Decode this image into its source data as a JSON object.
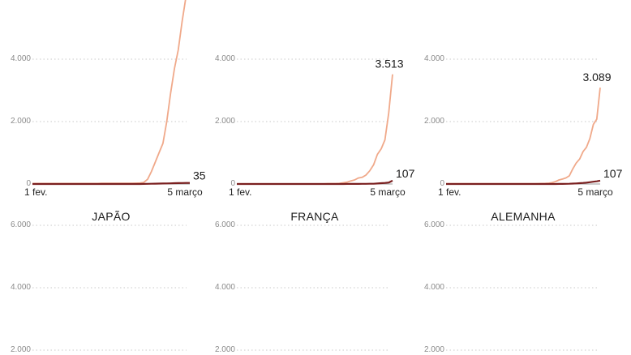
{
  "colors": {
    "cases": "#f0a98a",
    "deaths": "#7a1f1f",
    "grid": "#c8c8c8",
    "tick": "#8a8a8a"
  },
  "chart_data": [
    {
      "type": "line",
      "title": "",
      "y_ticks": [
        {
          "value": 4000,
          "label": "4.000"
        },
        {
          "value": 2000,
          "label": "2.000"
        },
        {
          "value": 0,
          "label": "0"
        }
      ],
      "grid_values": [
        6000,
        4000,
        2000
      ],
      "ylim": [
        0,
        6500
      ],
      "x_labels": {
        "start": "1 fev.",
        "end": "5 março"
      },
      "series": [
        {
          "key": "cases",
          "values": [
            15,
            15,
            15,
            15,
            15,
            15,
            15,
            15,
            15,
            15,
            15,
            15,
            15,
            15,
            15,
            15,
            15,
            15,
            20,
            20,
            20,
            20,
            20,
            20,
            21,
            22,
            24,
            26,
            31,
            50,
            150,
            400,
            700,
            1000,
            1300,
            2000,
            2900,
            3700,
            4300,
            5200,
            6000,
            6600
          ]
        },
        {
          "key": "deaths",
          "values": [
            0,
            0,
            0,
            0,
            0,
            0,
            0,
            0,
            0,
            0,
            0,
            0,
            0,
            0,
            0,
            0,
            0,
            0,
            0,
            0,
            0,
            0,
            0,
            0,
            0,
            0,
            0,
            0,
            0,
            2,
            5,
            8,
            10,
            12,
            15,
            18,
            22,
            25,
            28,
            30,
            33,
            35
          ]
        }
      ],
      "end_labels": [
        {
          "series": "deaths",
          "label": "35"
        }
      ]
    },
    {
      "type": "line",
      "title": "",
      "y_ticks": [
        {
          "value": 4000,
          "label": "4.000"
        },
        {
          "value": 2000,
          "label": "2.000"
        },
        {
          "value": 0,
          "label": "0"
        }
      ],
      "grid_values": [
        6000,
        4000,
        2000
      ],
      "ylim": [
        0,
        6500
      ],
      "x_labels": {
        "start": "1 fev.",
        "end": "5 março"
      },
      "series": [
        {
          "key": "cases",
          "values": [
            6,
            6,
            6,
            6,
            6,
            6,
            6,
            6,
            6,
            6,
            6,
            6,
            6,
            6,
            6,
            6,
            6,
            6,
            6,
            6,
            6,
            6,
            6,
            6,
            12,
            12,
            14,
            18,
            38,
            57,
            100,
            130,
            191,
            212,
            285,
            423,
            613,
            949,
            1126,
            1412,
            2281,
            3513
          ]
        },
        {
          "key": "deaths",
          "values": [
            0,
            0,
            0,
            0,
            0,
            0,
            0,
            0,
            0,
            0,
            0,
            0,
            0,
            0,
            0,
            0,
            0,
            0,
            0,
            0,
            0,
            0,
            0,
            0,
            0,
            0,
            0,
            0,
            1,
            2,
            2,
            2,
            3,
            4,
            5,
            7,
            9,
            16,
            25,
            33,
            48,
            107
          ]
        }
      ],
      "end_labels": [
        {
          "series": "cases",
          "label": "3.513"
        },
        {
          "series": "deaths",
          "label": "107"
        }
      ]
    },
    {
      "type": "line",
      "title": "",
      "y_ticks": [
        {
          "value": 4000,
          "label": "4.000"
        },
        {
          "value": 2000,
          "label": "2.000"
        },
        {
          "value": 0,
          "label": "0"
        }
      ],
      "grid_values": [
        6000,
        4000,
        2000
      ],
      "ylim": [
        0,
        6500
      ],
      "x_labels": {
        "start": "1 fev.",
        "end": "5 março"
      },
      "series": [
        {
          "key": "cases",
          "values": [
            8,
            8,
            8,
            8,
            8,
            8,
            8,
            8,
            8,
            8,
            8,
            8,
            8,
            8,
            8,
            8,
            8,
            8,
            8,
            8,
            8,
            8,
            8,
            8,
            8,
            8,
            10,
            12,
            16,
            18,
            26,
            48,
            79,
            130,
            159,
            196,
            262,
            482,
            670,
            799,
            1040,
            1176,
            1457,
            1908,
            2078,
            3089
          ]
        },
        {
          "key": "deaths",
          "values": [
            0,
            0,
            0,
            0,
            0,
            0,
            0,
            0,
            0,
            0,
            0,
            0,
            0,
            0,
            0,
            0,
            0,
            0,
            0,
            0,
            0,
            0,
            0,
            0,
            0,
            0,
            0,
            0,
            0,
            0,
            0,
            0,
            1,
            2,
            3,
            5,
            8,
            12,
            18,
            25,
            33,
            45,
            58,
            72,
            85,
            107
          ]
        }
      ],
      "end_labels": [
        {
          "series": "cases",
          "label": "3.089"
        },
        {
          "series": "deaths",
          "label": "107"
        }
      ]
    },
    {
      "type": "line",
      "title": "JAPÃO",
      "y_ticks": [
        {
          "value": 6000,
          "label": "6.000"
        },
        {
          "value": 4000,
          "label": "4.000"
        },
        {
          "value": 2000,
          "label": "2.000"
        }
      ],
      "grid_values": [
        6000,
        4000,
        2000
      ],
      "ylim": [
        0,
        6500
      ],
      "series": []
    },
    {
      "type": "line",
      "title": "FRANÇA",
      "y_ticks": [
        {
          "value": 6000,
          "label": "6.000"
        },
        {
          "value": 4000,
          "label": "4.000"
        },
        {
          "value": 2000,
          "label": "2.000"
        }
      ],
      "grid_values": [
        6000,
        4000,
        2000
      ],
      "ylim": [
        0,
        6500
      ],
      "series": []
    },
    {
      "type": "line",
      "title": "ALEMANHA",
      "y_ticks": [
        {
          "value": 6000,
          "label": "6.000"
        },
        {
          "value": 4000,
          "label": "4.000"
        },
        {
          "value": 2000,
          "label": "2.000"
        }
      ],
      "grid_values": [
        6000,
        4000,
        2000
      ],
      "ylim": [
        0,
        6500
      ],
      "series": []
    }
  ]
}
